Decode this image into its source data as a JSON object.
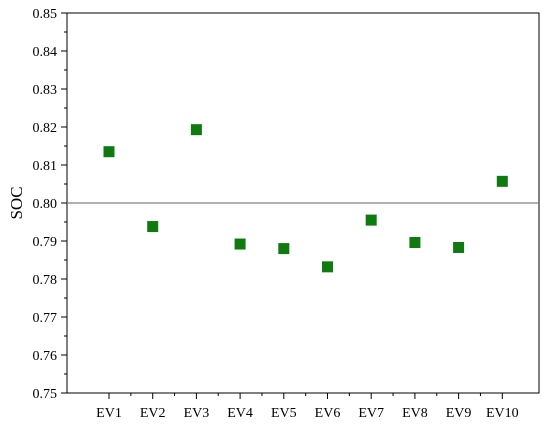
{
  "chart_data": {
    "type": "scatter",
    "title": "",
    "xlabel": "",
    "ylabel": "SOC",
    "categories": [
      "EV1",
      "EV2",
      "EV3",
      "EV4",
      "EV5",
      "EV6",
      "EV7",
      "EV8",
      "EV9",
      "EV10"
    ],
    "series": [
      {
        "values": [
          0.8135,
          0.7938,
          0.8193,
          0.7892,
          0.788,
          0.7832,
          0.7955,
          0.7896,
          0.7883,
          0.8057
        ],
        "color": "#0f7a0f",
        "marker": "square"
      }
    ],
    "ylim": [
      0.75,
      0.85
    ],
    "yticks": [
      0.75,
      0.76,
      0.77,
      0.78,
      0.79,
      0.8,
      0.81,
      0.82,
      0.83,
      0.84,
      0.85
    ],
    "ytick_labels": [
      "0.75",
      "0.76",
      "0.77",
      "0.78",
      "0.79",
      "0.80",
      "0.81",
      "0.82",
      "0.83",
      "0.84",
      "0.85"
    ],
    "reference_line": {
      "y": 0.8,
      "color": "#808080"
    },
    "grid": false,
    "legend": "none"
  }
}
